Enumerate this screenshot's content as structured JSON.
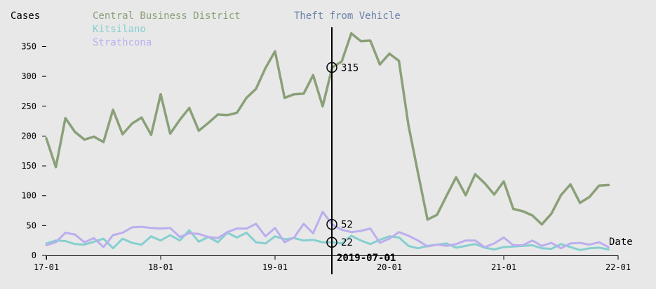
{
  "colors": {
    "background": "#e8e8e8",
    "title": "#6b82a8",
    "series": [
      "#8aa078",
      "#86cfcf",
      "#bcaeee"
    ]
  },
  "hover": {
    "title": "Theft from Vehicle",
    "date_label": "2019-07-01",
    "values": [
      "315",
      "52",
      "22"
    ]
  },
  "chart_data": {
    "type": "line",
    "title": "Theft from Vehicle",
    "xlabel": "Date",
    "ylabel": "Cases",
    "x_tick_labels": [
      "17-01",
      "18-01",
      "19-01",
      "20-01",
      "21-01",
      "22-01"
    ],
    "y_tick_labels": [
      "0",
      "50",
      "100",
      "150",
      "200",
      "250",
      "300",
      "350"
    ],
    "ylim": [
      0,
      380
    ],
    "x_start": "2017-01",
    "x_end": "2022-01",
    "legend_position": "top-left",
    "grid": false,
    "series": [
      {
        "name": "Central Business District",
        "values": [
          196,
          148,
          230,
          207,
          194,
          199,
          190,
          244,
          203,
          221,
          231,
          202,
          270,
          204,
          227,
          247,
          209,
          222,
          236,
          235,
          239,
          264,
          279,
          314,
          342,
          264,
          270,
          271,
          302,
          250,
          315,
          325,
          372,
          359,
          360,
          320,
          338,
          326,
          218,
          138,
          60,
          68,
          100,
          131,
          101,
          136,
          121,
          102,
          124,
          78,
          74,
          67,
          52,
          70,
          101,
          119,
          88,
          98,
          117,
          118
        ]
      },
      {
        "name": "Kitsilano",
        "values": [
          20,
          25,
          24,
          19,
          18,
          23,
          28,
          12,
          28,
          21,
          18,
          32,
          25,
          34,
          25,
          42,
          23,
          31,
          22,
          38,
          30,
          38,
          22,
          20,
          32,
          27,
          29,
          25,
          26,
          22,
          22,
          20,
          33,
          25,
          19,
          26,
          32,
          30,
          16,
          12,
          16,
          18,
          20,
          13,
          16,
          19,
          13,
          10,
          14,
          15,
          16,
          17,
          12,
          11,
          19,
          14,
          9,
          12,
          13,
          10
        ]
      },
      {
        "name": "Strathcona",
        "values": [
          17,
          22,
          38,
          35,
          22,
          29,
          14,
          34,
          38,
          47,
          48,
          46,
          45,
          46,
          31,
          37,
          36,
          31,
          29,
          39,
          45,
          45,
          53,
          32,
          46,
          22,
          30,
          53,
          37,
          73,
          52,
          43,
          39,
          41,
          45,
          21,
          28,
          39,
          33,
          25,
          15,
          18,
          16,
          19,
          25,
          25,
          14,
          20,
          30,
          17,
          17,
          25,
          16,
          21,
          12,
          20,
          21,
          18,
          22,
          14
        ]
      }
    ]
  }
}
